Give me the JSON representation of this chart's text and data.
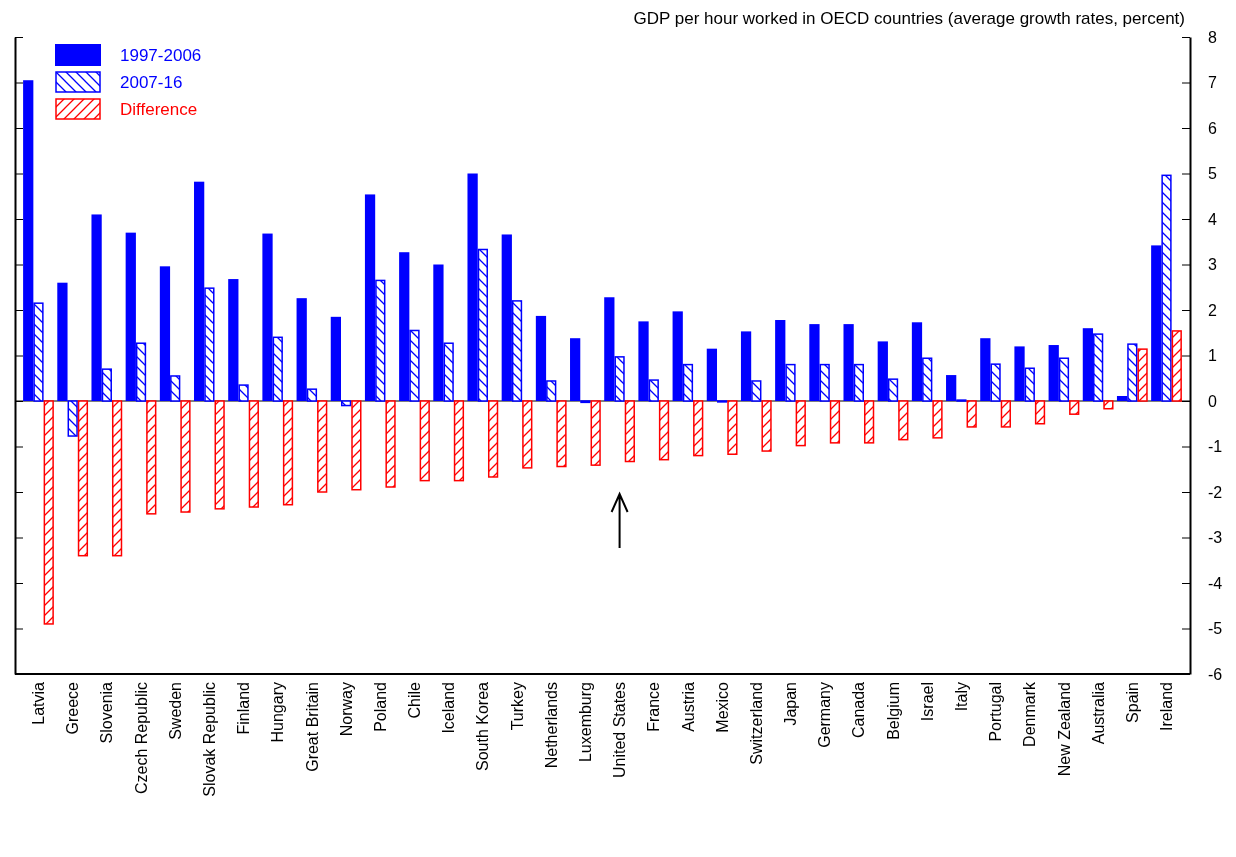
{
  "chart_data": {
    "type": "bar",
    "title": "GDP per hour worked in OECD countries (average growth rates, percent)",
    "categories": [
      "Latvia",
      "Greece",
      "Slovenia",
      "Czech Republic",
      "Sweden",
      "Slovak Republic",
      "Finland",
      "Hungary",
      "Great Britain",
      "Norway",
      "Poland",
      "Chile",
      "Iceland",
      "South Korea",
      "Turkey",
      "Netherlands",
      "Luxemburg",
      "United States",
      "France",
      "Austria",
      "Mexico",
      "Switzerland",
      "Japan",
      "Germany",
      "Canada",
      "Belgium",
      "Israel",
      "Italy",
      "Portugal",
      "Denmark",
      "New Zealand",
      "Australia",
      "Spain",
      "Ireland"
    ],
    "series": [
      {
        "name": "1997-2006",
        "color": "#0000ff",
        "values": [
          7.05,
          2.6,
          4.1,
          3.7,
          2.96,
          4.82,
          2.68,
          3.68,
          2.26,
          1.85,
          4.54,
          3.27,
          3.0,
          5.0,
          3.66,
          1.87,
          1.38,
          2.28,
          1.75,
          1.97,
          1.15,
          1.53,
          1.78,
          1.69,
          1.69,
          1.31,
          1.73,
          0.57,
          1.38,
          1.2,
          1.23,
          1.6,
          0.11,
          3.42
        ]
      },
      {
        "name": "2007-16",
        "color": "#0000ff",
        "values": [
          2.15,
          -0.77,
          0.7,
          1.27,
          0.55,
          2.48,
          0.35,
          1.4,
          0.26,
          -0.1,
          2.65,
          1.55,
          1.27,
          3.33,
          2.2,
          0.44,
          -0.03,
          0.97,
          0.46,
          0.8,
          -0.02,
          0.44,
          0.8,
          0.8,
          0.8,
          0.48,
          0.94,
          0.02,
          0.81,
          0.72,
          0.94,
          1.47,
          1.25,
          4.96
        ]
      },
      {
        "name": "Difference",
        "color": "#ff0000",
        "values": [
          -4.9,
          -3.4,
          -3.4,
          -2.48,
          -2.44,
          -2.37,
          -2.33,
          -2.28,
          -2.0,
          -1.95,
          -1.89,
          -1.75,
          -1.75,
          -1.67,
          -1.47,
          -1.44,
          -1.41,
          -1.33,
          -1.29,
          -1.2,
          -1.17,
          -1.1,
          -0.98,
          -0.92,
          -0.92,
          -0.85,
          -0.81,
          -0.57,
          -0.57,
          -0.5,
          -0.29,
          -0.17,
          1.14,
          1.54
        ]
      }
    ],
    "ylim": [
      -6,
      8
    ],
    "yticks": [
      -6,
      -5,
      -4,
      -3,
      -2,
      -1,
      0,
      1,
      2,
      3,
      4,
      5,
      6,
      7,
      8
    ],
    "legend": "top left"
  }
}
